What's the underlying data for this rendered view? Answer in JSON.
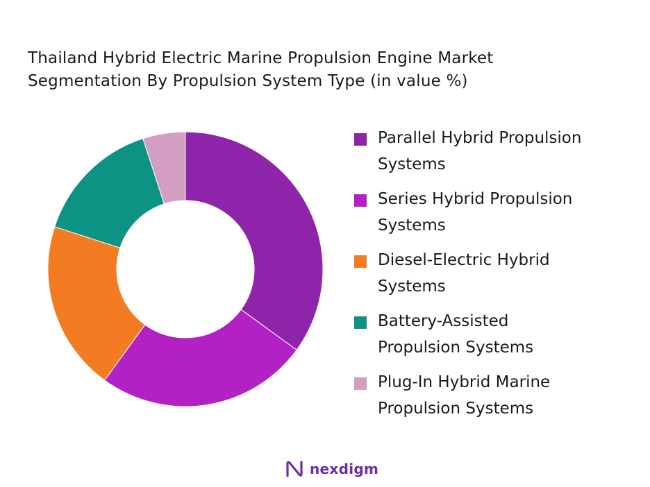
{
  "title": {
    "line1": "Thailand Hybrid Electric Marine Propulsion Engine Market",
    "line2": "Segmentation By Propulsion System Type (in value %)"
  },
  "legend": [
    {
      "line1": "Parallel Hybrid Propulsion",
      "line2": "Systems",
      "color": "#8e24aa"
    },
    {
      "line1": "Series Hybrid Propulsion",
      "line2": "Systems",
      "color": "#b321c4"
    },
    {
      "line1": "Diesel-Electric Hybrid",
      "line2": "Systems",
      "color": "#f37b21"
    },
    {
      "line1": "Battery-Assisted",
      "line2": "Propulsion Systems",
      "color": "#0d9383"
    },
    {
      "line1": "Plug-In Hybrid Marine",
      "line2": "Propulsion Systems",
      "color": "#d29ec2"
    }
  ],
  "brand": {
    "name": "nexdigm",
    "icon": "nexdigm-logo-icon",
    "color": "#6c2ea8"
  },
  "chart_data": {
    "type": "pie",
    "variant": "donut",
    "categories": [
      "Parallel Hybrid Propulsion Systems",
      "Series Hybrid Propulsion Systems",
      "Diesel-Electric Hybrid Systems",
      "Battery-Assisted Propulsion Systems",
      "Plug-In Hybrid Marine Propulsion Systems"
    ],
    "values": [
      35,
      25,
      20,
      15,
      5
    ],
    "colors": [
      "#8e24aa",
      "#b321c4",
      "#f37b21",
      "#0d9383",
      "#d29ec2"
    ],
    "start": "top",
    "direction": "clockwise",
    "legend_position": "right"
  }
}
